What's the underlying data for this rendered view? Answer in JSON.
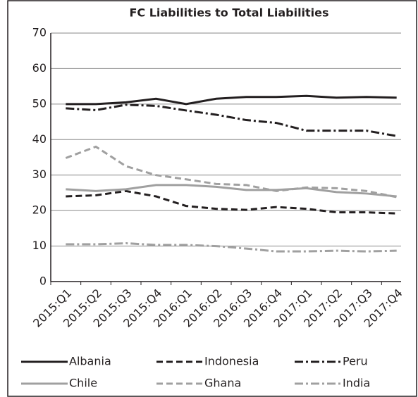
{
  "chart_data": {
    "type": "line",
    "title": "FC Liabilities to Total Liabilities",
    "categories": [
      "2015:Q1",
      "2015:Q2",
      "2015:Q3",
      "2015:Q4",
      "2016:Q1",
      "2016:Q2",
      "2016:Q3",
      "2016:Q4",
      "2017:Q1",
      "2017:Q2",
      "2017:Q3",
      "2017:Q4"
    ],
    "series": [
      {
        "name": "Albania",
        "color": "#231f20",
        "dash": "solid",
        "values": [
          50,
          50,
          50.5,
          51.5,
          50,
          51.5,
          52,
          52,
          52.3,
          51.8,
          52,
          51.8
        ]
      },
      {
        "name": "Indonesia",
        "color": "#231f20",
        "dash": "dashed",
        "values": [
          24,
          24.3,
          25.5,
          24,
          21.3,
          20.5,
          20.2,
          21,
          20.5,
          19.5,
          19.5,
          19.2
        ]
      },
      {
        "name": "Peru",
        "color": "#231f20",
        "dash": "dashdot",
        "values": [
          48.8,
          48.3,
          49.8,
          49.5,
          48.2,
          47,
          45.5,
          44.7,
          42.5,
          42.5,
          42.5,
          41
        ]
      },
      {
        "name": "Chile",
        "color": "#a0a0a0",
        "dash": "solid",
        "values": [
          26,
          25.5,
          26,
          27.2,
          27.2,
          26.7,
          25.8,
          25.8,
          26.3,
          25.2,
          24.8,
          24
        ]
      },
      {
        "name": "Ghana",
        "color": "#a0a0a0",
        "dash": "dashed",
        "values": [
          34.8,
          38,
          32.5,
          30,
          28.8,
          27.5,
          27.2,
          25.5,
          26.5,
          26.3,
          25.5,
          23.8
        ]
      },
      {
        "name": "India",
        "color": "#a0a0a0",
        "dash": "dashdot",
        "values": [
          10.5,
          10.5,
          10.8,
          10.3,
          10.3,
          10,
          9.3,
          8.5,
          8.5,
          8.7,
          8.5,
          8.7
        ]
      }
    ],
    "ylim": [
      0,
      70
    ],
    "yticks": [
      0,
      10,
      20,
      30,
      40,
      50,
      60,
      70
    ],
    "grid": true,
    "legend": "bottom"
  }
}
